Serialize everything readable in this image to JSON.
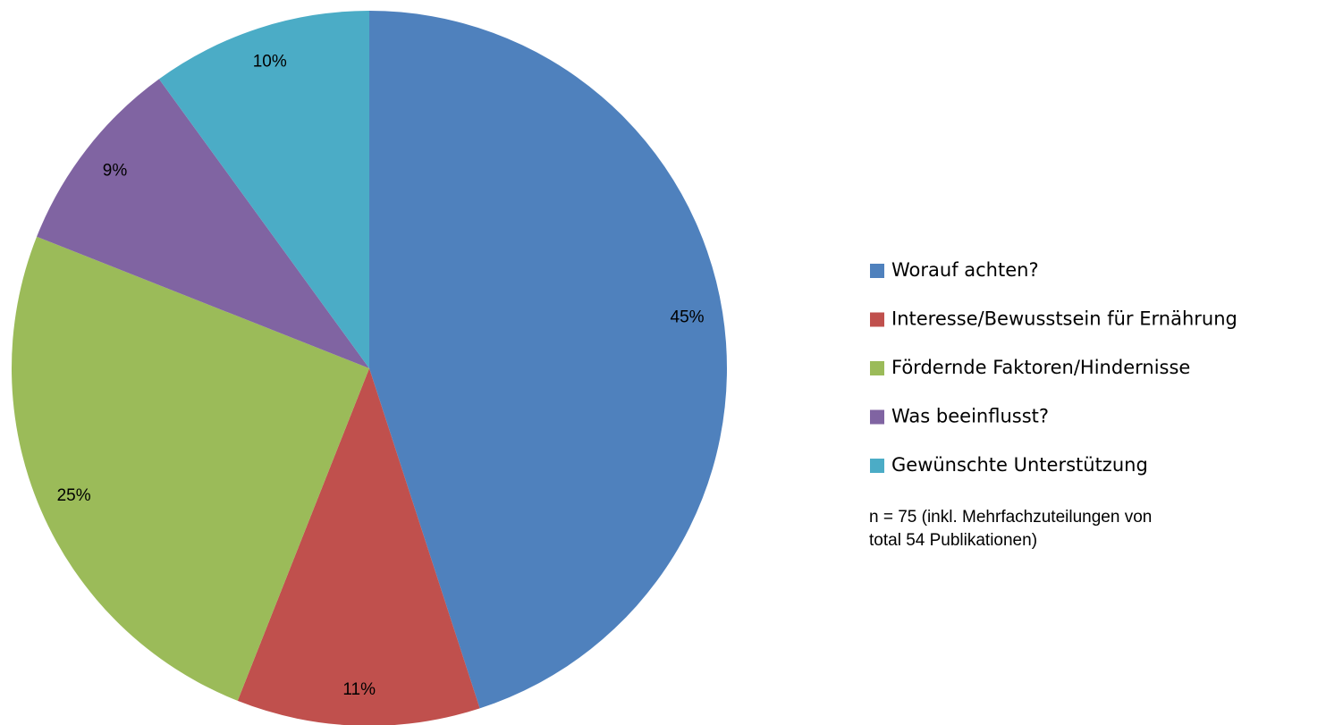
{
  "chart_data": {
    "type": "pie",
    "categories": [
      "Worauf achten?",
      "Interesse/Bewusstsein für Ernährung",
      "Fördernde Faktoren/Hindernisse",
      "Was beeinflusst?",
      "Gewünschte Unterstützung"
    ],
    "values": [
      45,
      11,
      25,
      9,
      10
    ],
    "value_labels": [
      "45%",
      "11%",
      "25%",
      "9%",
      "10%"
    ],
    "colors": [
      "#4f81bd",
      "#c0504d",
      "#9bbb59",
      "#8064a2",
      "#4bacc6"
    ],
    "legend": "right",
    "annotation": "n = 75 (inkl. Mehrfachzuteilungen von total 54 Publikationen)"
  }
}
